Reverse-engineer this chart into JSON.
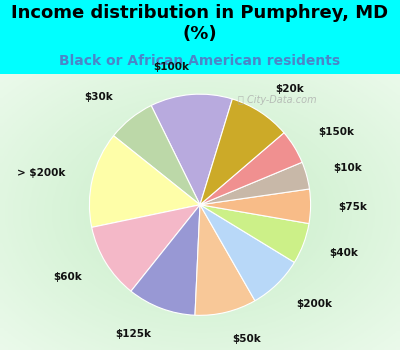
{
  "title": "Income distribution in Pumphrey, MD\n(%)",
  "subtitle": "Black or African American residents",
  "title_color": "#000000",
  "subtitle_color": "#4a86c8",
  "bg_cyan": "#00ffff",
  "chart_bg": "#c8eec8",
  "watermark": "ⓘ City-Data.com",
  "labels": [
    "$100k",
    "$30k",
    "> $200k",
    "$60k",
    "$125k",
    "$50k",
    "$200k",
    "$40k",
    "$75k",
    "$10k",
    "$150k",
    "$20k"
  ],
  "values": [
    12,
    7,
    14,
    11,
    10,
    9,
    8,
    6,
    5,
    4,
    5,
    9
  ],
  "colors": [
    "#b8aade",
    "#bcd8a8",
    "#fefea8",
    "#f4b8c8",
    "#9898d4",
    "#f8c898",
    "#b8d8f8",
    "#ccf088",
    "#f8bc88",
    "#c8b8a8",
    "#f09090",
    "#ccaa28"
  ],
  "startangle": 73,
  "labeldistance": 1.25,
  "label_fontsize": 7.5,
  "title_fontsize": 13,
  "subtitle_fontsize": 10,
  "wedge_linewidth": 0.8,
  "wedge_edgecolor": "white"
}
